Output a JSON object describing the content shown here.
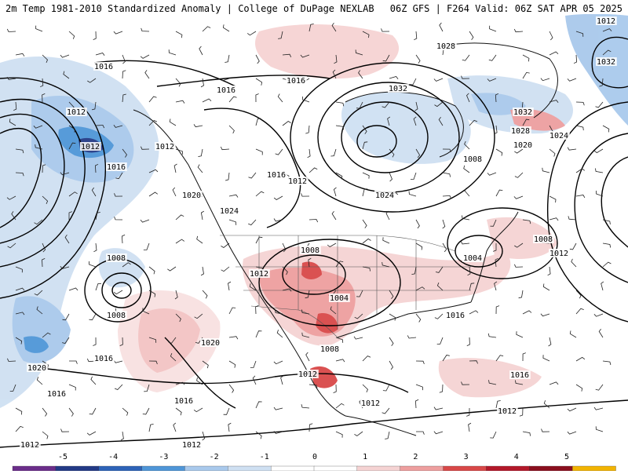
{
  "header": {
    "left_title": "2m Temp 1981-2010 Standardized Anomaly | College of DuPage NEXLAB",
    "right_title": "06Z GFS | F264 Valid: 06Z SAT APR 05 2025"
  },
  "colors": {
    "land_neutral": "#ffffff",
    "ocean_neutral": "#ffffff",
    "cold_1": "#cfe0f2",
    "cold_2": "#a9c9ec",
    "cold_3": "#4f96d8",
    "cold_4": "#2e63b8",
    "cold_5": "#233a86",
    "warm_1": "#f5d3d3",
    "warm_2": "#ee9f9f",
    "warm_3": "#d94848",
    "warm_4": "#b3182a",
    "warm_5": "#8a0f1e",
    "extreme_low": "#6b2e8a",
    "extreme_high": "#f2b400"
  },
  "colorbar": {
    "ticks": [
      "-5",
      "-4",
      "-3",
      "-2",
      "-1",
      "0",
      "1",
      "2",
      "3",
      "4",
      "5"
    ]
  },
  "isobars": {
    "labels": [
      {
        "text": "1016"
      },
      {
        "text": "1012"
      },
      {
        "text": "1012"
      },
      {
        "text": "1012"
      },
      {
        "text": "1016"
      },
      {
        "text": "1016"
      },
      {
        "text": "1016"
      },
      {
        "text": "1020"
      },
      {
        "text": "1024"
      },
      {
        "text": "1012"
      },
      {
        "text": "1016"
      },
      {
        "text": "1028"
      },
      {
        "text": "1032"
      },
      {
        "text": "1032"
      },
      {
        "text": "1032"
      },
      {
        "text": "1028"
      },
      {
        "text": "1020"
      },
      {
        "text": "1024"
      },
      {
        "text": "1008"
      },
      {
        "text": "1024"
      },
      {
        "text": "1008"
      },
      {
        "text": "1012"
      },
      {
        "text": "1004"
      },
      {
        "text": "1008"
      },
      {
        "text": "1012"
      },
      {
        "text": "1008"
      },
      {
        "text": "1004"
      },
      {
        "text": "1016"
      },
      {
        "text": "1008"
      },
      {
        "text": "1012"
      },
      {
        "text": "1012"
      },
      {
        "text": "1012"
      },
      {
        "text": "1008"
      },
      {
        "text": "1020"
      },
      {
        "text": "1016"
      },
      {
        "text": "1020"
      },
      {
        "text": "1016"
      },
      {
        "text": "1016"
      },
      {
        "text": "1012"
      },
      {
        "text": "1012"
      },
      {
        "text": "1016"
      },
      {
        "text": "1012"
      }
    ]
  }
}
